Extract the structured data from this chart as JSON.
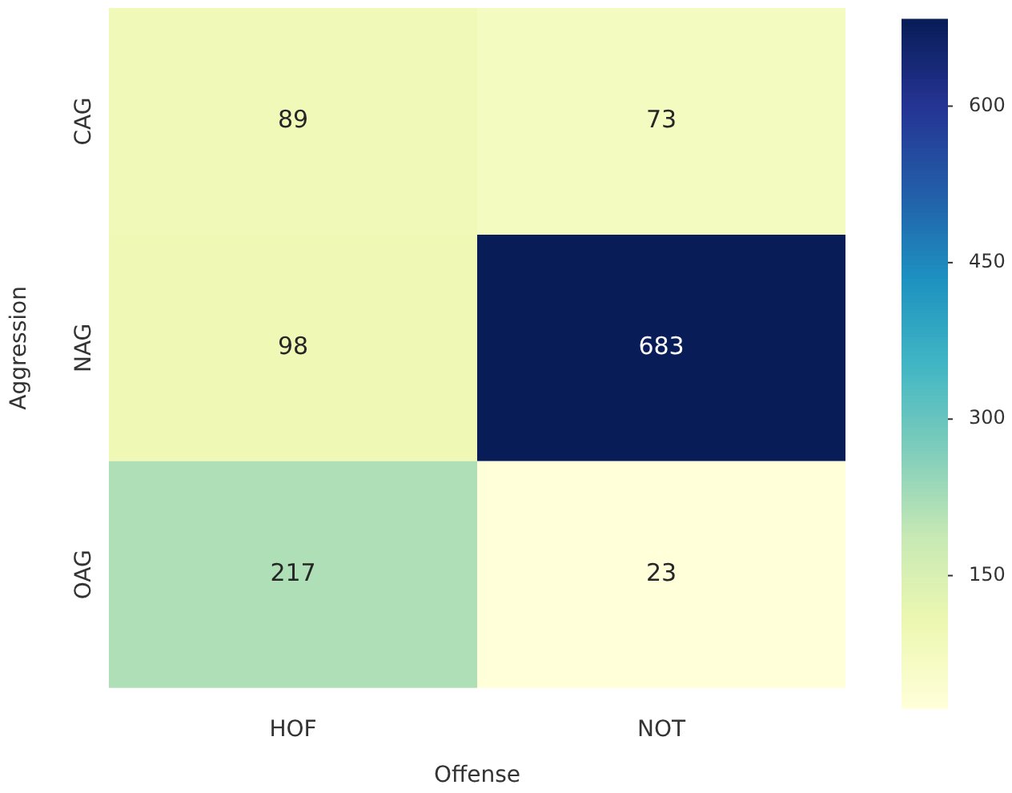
{
  "chart_data": {
    "type": "heatmap",
    "xlabel": "Offense",
    "ylabel": "Aggression",
    "categories": [
      "HOF",
      "NOT"
    ],
    "y_categories": [
      "CAG",
      "NAG",
      "OAG"
    ],
    "cells": [
      [
        89,
        73
      ],
      [
        98,
        683
      ],
      [
        217,
        23
      ]
    ],
    "data_labels": true,
    "clim": [
      23,
      683
    ],
    "cticks": [
      150,
      300,
      450,
      600
    ]
  }
}
